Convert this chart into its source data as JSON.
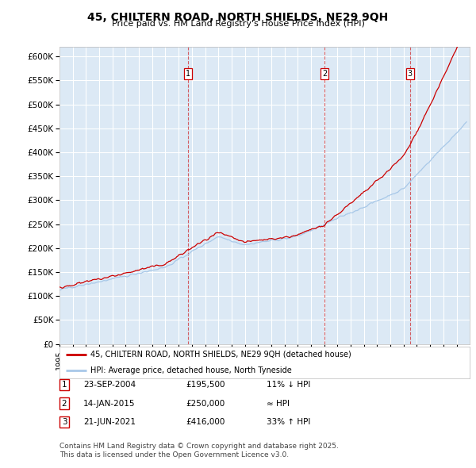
{
  "title": "45, CHILTERN ROAD, NORTH SHIELDS, NE29 9QH",
  "subtitle": "Price paid vs. HM Land Registry's House Price Index (HPI)",
  "ylim": [
    0,
    620000
  ],
  "yticks": [
    0,
    50000,
    100000,
    150000,
    200000,
    250000,
    300000,
    350000,
    400000,
    450000,
    500000,
    550000,
    600000
  ],
  "ytick_labels": [
    "£0",
    "£50K",
    "£100K",
    "£150K",
    "£200K",
    "£250K",
    "£300K",
    "£350K",
    "£400K",
    "£450K",
    "£500K",
    "£550K",
    "£600K"
  ],
  "hpi_color": "#a8c8e8",
  "price_color": "#cc0000",
  "vline_color": "#cc0000",
  "plot_bg_color": "#dce9f5",
  "transactions": [
    {
      "label": "1",
      "date": "23-SEP-2004",
      "price": 195500,
      "x_year": 2004.73,
      "hpi_pct": "11% ↓ HPI"
    },
    {
      "label": "2",
      "date": "14-JAN-2015",
      "price": 250000,
      "x_year": 2015.04,
      "hpi_pct": "≈ HPI"
    },
    {
      "label": "3",
      "date": "21-JUN-2021",
      "price": 416000,
      "x_year": 2021.47,
      "hpi_pct": "33% ↑ HPI"
    }
  ],
  "legend_line1": "45, CHILTERN ROAD, NORTH SHIELDS, NE29 9QH (detached house)",
  "legend_line2": "HPI: Average price, detached house, North Tyneside",
  "footnote": "Contains HM Land Registry data © Crown copyright and database right 2025.\nThis data is licensed under the Open Government Licence v3.0.",
  "xmin": 1995,
  "xmax": 2026
}
